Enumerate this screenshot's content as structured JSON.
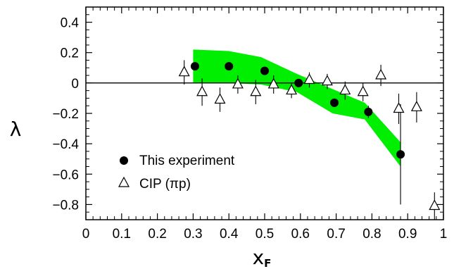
{
  "chart_data": {
    "type": "scatter",
    "xlabel": "x",
    "xlabel_sub": "F",
    "ylabel": "λ",
    "xlim": [
      0,
      1
    ],
    "ylim": [
      -0.9,
      0.5
    ],
    "x_ticks": [
      0,
      0.1,
      0.2,
      0.3,
      0.4,
      0.5,
      0.6,
      0.7,
      0.8,
      0.9,
      1
    ],
    "x_tick_labels": [
      "0",
      "0.1",
      "0.2",
      "0.3",
      "0.4",
      "0.5",
      "0.6",
      "0.7",
      "0.8",
      "0.9",
      "1"
    ],
    "y_ticks": [
      0.4,
      0.2,
      0,
      -0.2,
      -0.4,
      -0.6,
      -0.8
    ],
    "y_tick_labels": [
      "0.4",
      "0.2",
      "0",
      "−0.2",
      "−0.4",
      "−0.6",
      "−0.8"
    ],
    "zero_line": true,
    "legend": {
      "placement": "bottom-left"
    },
    "band": {
      "color": "#00ee00",
      "upper": [
        [
          0.3,
          0.22
        ],
        [
          0.4,
          0.21
        ],
        [
          0.49,
          0.17
        ],
        [
          0.59,
          0.06
        ],
        [
          0.69,
          -0.04
        ],
        [
          0.78,
          -0.13
        ],
        [
          0.88,
          -0.39
        ]
      ],
      "lower": [
        [
          0.3,
          0.0
        ],
        [
          0.4,
          0.0
        ],
        [
          0.49,
          -0.01
        ],
        [
          0.59,
          -0.06
        ],
        [
          0.69,
          -0.2
        ],
        [
          0.78,
          -0.24
        ],
        [
          0.88,
          -0.55
        ]
      ]
    },
    "series": [
      {
        "name": "This experiment",
        "marker": "filled-circle",
        "points": [
          {
            "x": 0.305,
            "y": 0.11,
            "err": 0.0
          },
          {
            "x": 0.4,
            "y": 0.11,
            "err": 0.0
          },
          {
            "x": 0.5,
            "y": 0.08,
            "err": 0.0
          },
          {
            "x": 0.595,
            "y": 0.0,
            "err": 0.0
          },
          {
            "x": 0.695,
            "y": -0.13,
            "err": 0.0
          },
          {
            "x": 0.79,
            "y": -0.19,
            "err": 0.04
          },
          {
            "x": 0.88,
            "y": -0.47,
            "err": 0.33
          }
        ]
      },
      {
        "name": "CIP (πp)",
        "marker": "open-triangle",
        "points": [
          {
            "x": 0.275,
            "y": 0.07,
            "err": 0.08
          },
          {
            "x": 0.325,
            "y": -0.06,
            "err": 0.09
          },
          {
            "x": 0.375,
            "y": -0.11,
            "err": 0.08
          },
          {
            "x": 0.425,
            "y": -0.01,
            "err": 0.06
          },
          {
            "x": 0.475,
            "y": -0.06,
            "err": 0.08
          },
          {
            "x": 0.525,
            "y": -0.01,
            "err": 0.06
          },
          {
            "x": 0.575,
            "y": -0.05,
            "err": 0.05
          },
          {
            "x": 0.625,
            "y": 0.02,
            "err": 0.05
          },
          {
            "x": 0.675,
            "y": 0.01,
            "err": 0.05
          },
          {
            "x": 0.725,
            "y": -0.05,
            "err": 0.06
          },
          {
            "x": 0.775,
            "y": -0.06,
            "err": 0.06
          },
          {
            "x": 0.825,
            "y": 0.05,
            "err": 0.07
          },
          {
            "x": 0.875,
            "y": -0.17,
            "err": 0.1
          },
          {
            "x": 0.925,
            "y": -0.16,
            "err": 0.1
          },
          {
            "x": 0.975,
            "y": -0.81,
            "err": 0.09
          }
        ]
      }
    ]
  }
}
